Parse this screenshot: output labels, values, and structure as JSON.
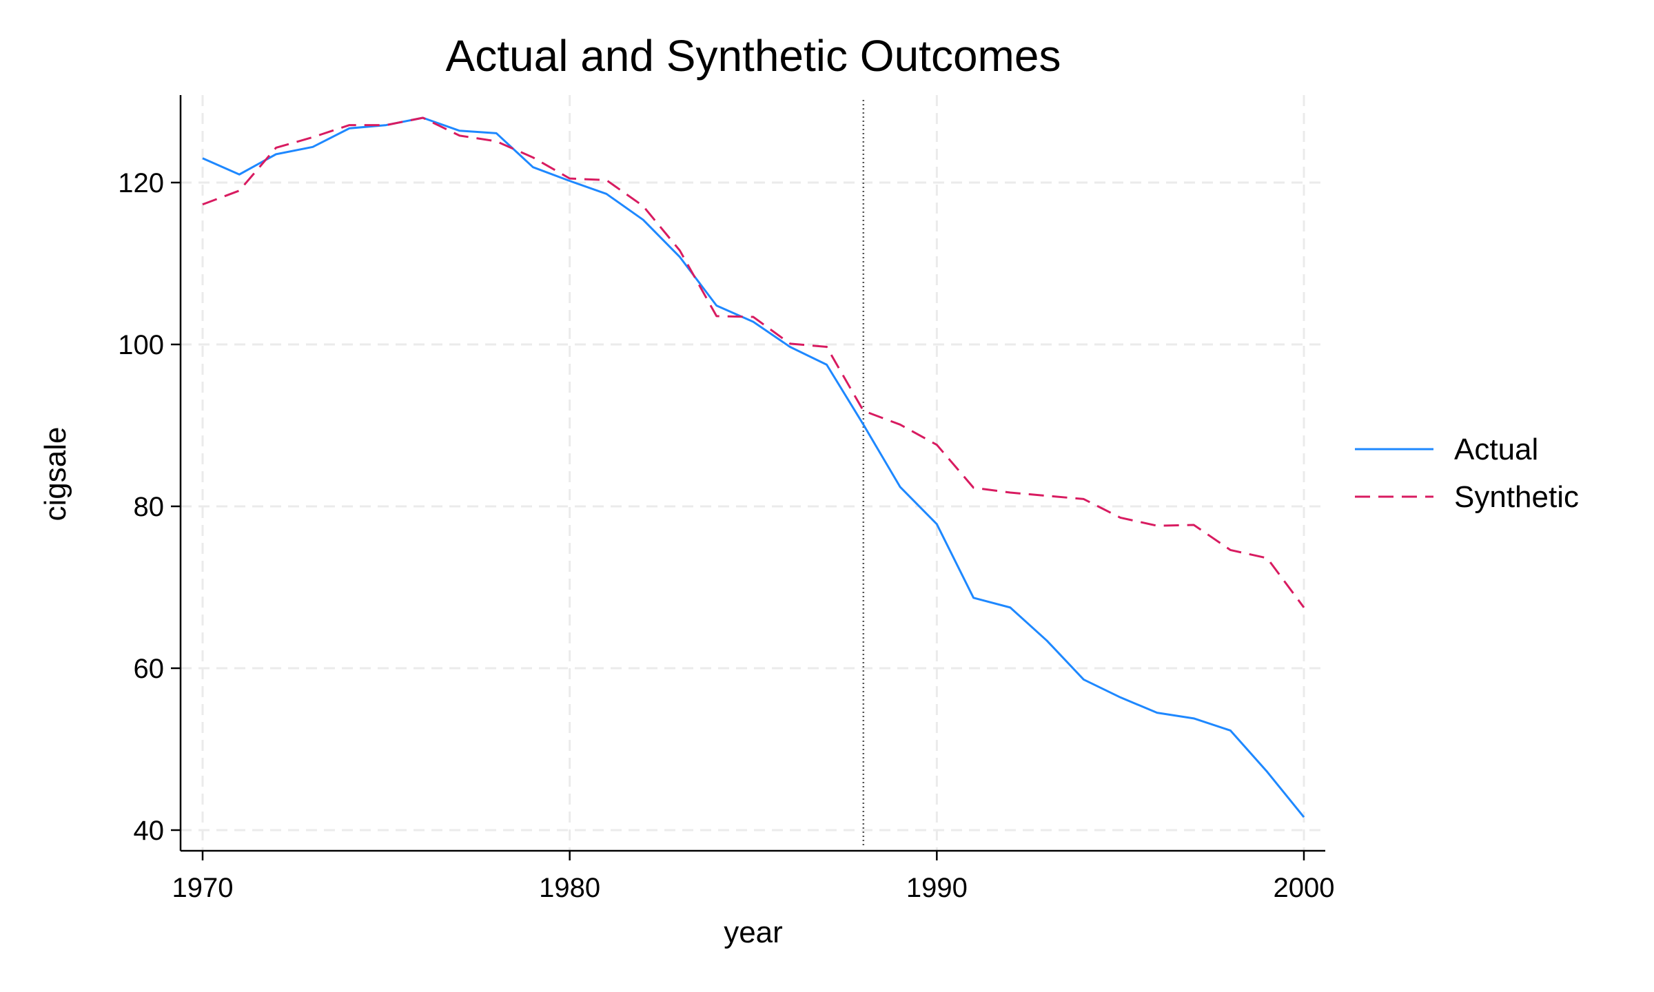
{
  "chart_data": {
    "type": "line",
    "title": "Actual and Synthetic Outcomes",
    "xlabel": "year",
    "ylabel": "cigsale",
    "xlim": [
      1969.4,
      2000.6
    ],
    "ylim": [
      37.4,
      130.7
    ],
    "xticks": [
      1970,
      1980,
      1990,
      2000
    ],
    "yticks": [
      40,
      60,
      80,
      100,
      120
    ],
    "grid": true,
    "legend_position": "right",
    "reference_line_x": 1988,
    "x": [
      1970,
      1971,
      1972,
      1973,
      1974,
      1975,
      1976,
      1977,
      1978,
      1979,
      1980,
      1981,
      1982,
      1983,
      1984,
      1985,
      1986,
      1987,
      1988,
      1989,
      1990,
      1991,
      1992,
      1993,
      1994,
      1995,
      1996,
      1997,
      1998,
      1999,
      2000
    ],
    "series": [
      {
        "name": "Actual",
        "color": "#1e88ff",
        "style": "solid",
        "values": [
          123,
          121,
          123.5,
          124.4,
          126.7,
          127.1,
          128,
          126.4,
          126.1,
          121.9,
          120.2,
          118.6,
          115.4,
          110.8,
          104.8,
          102.8,
          99.7,
          97.5,
          90.1,
          82.4,
          77.8,
          68.7,
          67.5,
          63.4,
          58.6,
          56.4,
          54.5,
          53.8,
          52.3,
          47.2,
          41.6
        ]
      },
      {
        "name": "Synthetic",
        "color": "#d81b60",
        "style": "dashed",
        "values": [
          117.3,
          119,
          124.3,
          125.6,
          127.1,
          127.1,
          128,
          125.8,
          125.1,
          123.1,
          120.5,
          120.3,
          117.1,
          111.6,
          103.5,
          103.4,
          100.1,
          99.7,
          91.8,
          90.1,
          87.6,
          82.3,
          81.7,
          81.3,
          80.9,
          78.6,
          77.6,
          77.7,
          74.6,
          73.6,
          67.5
        ]
      }
    ]
  }
}
